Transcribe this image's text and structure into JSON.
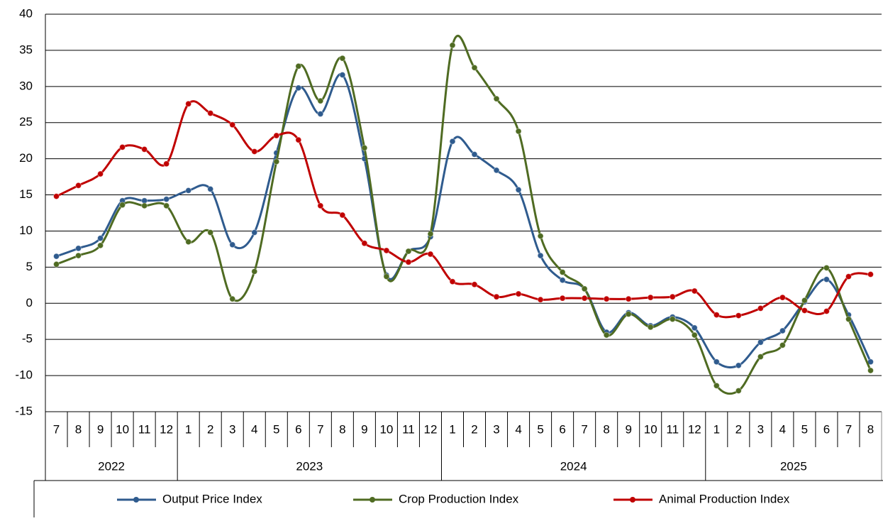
{
  "chart_data": {
    "type": "line",
    "categories": [
      "7",
      "8",
      "9",
      "10",
      "11",
      "12",
      "1",
      "2",
      "3",
      "4",
      "5",
      "6",
      "7",
      "8",
      "9",
      "10",
      "11",
      "12",
      "1",
      "2",
      "3",
      "4",
      "5",
      "6",
      "7",
      "8",
      "9",
      "10",
      "11",
      "12",
      "1",
      "2",
      "3",
      "4",
      "5",
      "6",
      "7",
      "8"
    ],
    "years": [
      "2022",
      "2023",
      "2024",
      "2025"
    ],
    "series": [
      {
        "name": "Output Price Index",
        "color": "#2f5b8e",
        "values": [
          6.5,
          7.6,
          9.0,
          14.2,
          14.2,
          14.4,
          15.6,
          15.8,
          8.1,
          9.8,
          20.8,
          29.8,
          26.2,
          31.6,
          20.0,
          3.9,
          7.2,
          9.2,
          22.4,
          20.6,
          18.4,
          15.7,
          6.6,
          3.2,
          2.0,
          -4.0,
          -1.3,
          -3.1,
          -1.9,
          -3.4,
          -8.1,
          -8.6,
          -5.4,
          -3.8,
          0.2,
          3.3,
          -1.6,
          -8.1
        ]
      },
      {
        "name": "Crop Production Index",
        "color": "#4f6b22",
        "values": [
          5.4,
          6.6,
          8.0,
          13.6,
          13.5,
          13.5,
          8.5,
          9.8,
          0.6,
          4.4,
          19.6,
          32.8,
          28.0,
          33.9,
          21.5,
          3.7,
          7.2,
          9.6,
          35.7,
          32.6,
          28.3,
          23.8,
          9.3,
          4.3,
          2.0,
          -4.4,
          -1.5,
          -3.3,
          -2.2,
          -4.4,
          -11.4,
          -12.1,
          -7.4,
          -5.8,
          0.4,
          4.9,
          -2.2,
          -9.3
        ]
      },
      {
        "name": "Animal Production Index",
        "color": "#c00000",
        "values": [
          14.8,
          16.3,
          17.9,
          21.6,
          21.3,
          19.3,
          27.6,
          26.3,
          24.7,
          21.0,
          23.2,
          22.6,
          13.5,
          12.2,
          8.3,
          7.3,
          5.7,
          6.8,
          3.0,
          2.6,
          0.9,
          1.3,
          0.5,
          0.7,
          0.7,
          0.6,
          0.6,
          0.8,
          0.9,
          1.7,
          -1.6,
          -1.7,
          -0.7,
          0.8,
          -1.0,
          -1.1,
          3.7,
          4.0
        ]
      }
    ],
    "ylim": [
      -15,
      40
    ],
    "yticks": [
      -15,
      -10,
      -5,
      0,
      5,
      10,
      15,
      20,
      25,
      30,
      35,
      40
    ],
    "grid": true,
    "legend": "bottom",
    "smooth": true
  }
}
